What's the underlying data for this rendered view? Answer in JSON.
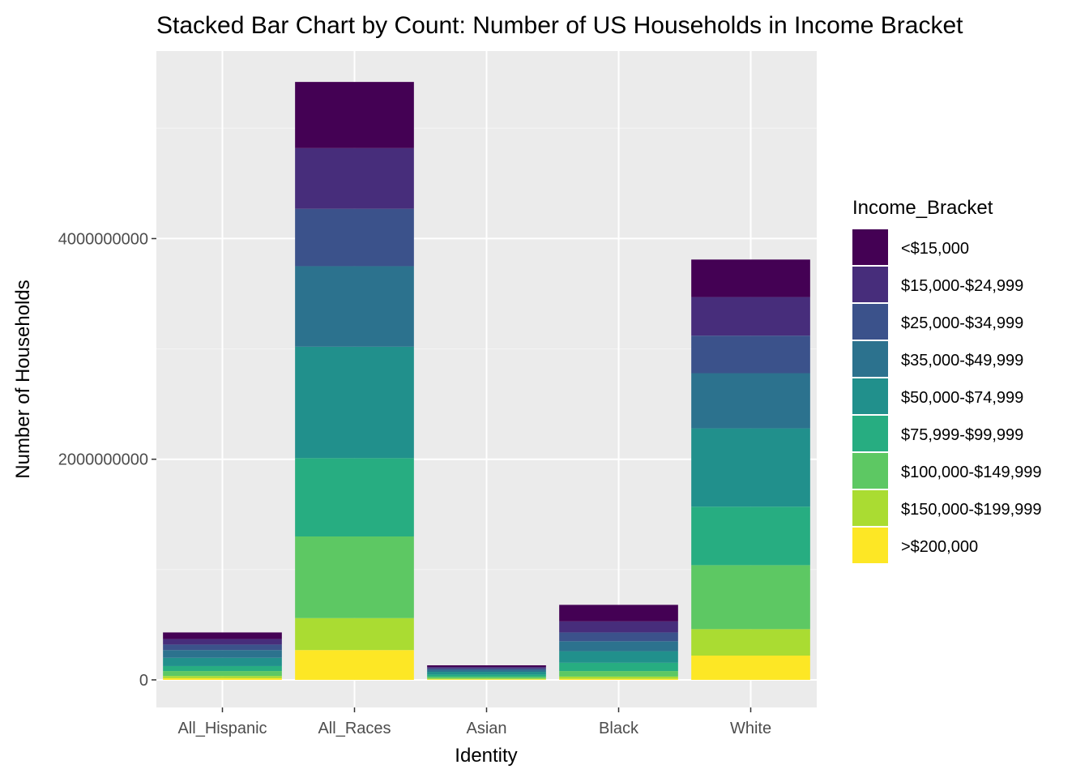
{
  "chart_data": {
    "type": "bar",
    "stacked": true,
    "title": "Stacked Bar Chart by Count: Number of US Households in Income Bracket",
    "xlabel": "Identity",
    "ylabel": "Number of Households",
    "categories": [
      "All_Hispanic",
      "All_Races",
      "Asian",
      "Black",
      "White"
    ],
    "y_ticks": [
      0,
      2000000000,
      4000000000
    ],
    "y_tick_labels": [
      "0",
      "2000000000",
      "4000000000"
    ],
    "ylim": [
      -250000000,
      5700000000
    ],
    "grid": true,
    "legend_title": "Income_Bracket",
    "legend_position": "right",
    "series": [
      {
        "name": "<$15,000",
        "color": "#440154",
        "values": [
          60000000,
          600000000,
          15000000,
          150000000,
          340000000
        ]
      },
      {
        "name": "$15,000-$24,999",
        "color": "#472D7B",
        "values": [
          50000000,
          550000000,
          13000000,
          100000000,
          350000000
        ]
      },
      {
        "name": "$25,000-$34,999",
        "color": "#3B528B",
        "values": [
          50000000,
          520000000,
          13000000,
          80000000,
          340000000
        ]
      },
      {
        "name": "$35,000-$49,999",
        "color": "#2C728E",
        "values": [
          70000000,
          730000000,
          18000000,
          90000000,
          500000000
        ]
      },
      {
        "name": "$50,000-$74,999",
        "color": "#21908C",
        "values": [
          75000000,
          1010000000,
          25000000,
          105000000,
          710000000
        ]
      },
      {
        "name": "$75,999-$99,999",
        "color": "#27AD81",
        "values": [
          45000000,
          710000000,
          20000000,
          75000000,
          530000000
        ]
      },
      {
        "name": "$100,000-$149,999",
        "color": "#5DC863",
        "values": [
          45000000,
          740000000,
          15000000,
          50000000,
          580000000
        ]
      },
      {
        "name": "$150,000-$199,999",
        "color": "#AADC32",
        "values": [
          20000000,
          290000000,
          8000000,
          20000000,
          240000000
        ]
      },
      {
        "name": ">$200,000",
        "color": "#FDE725",
        "values": [
          15000000,
          270000000,
          5000000,
          10000000,
          220000000
        ]
      }
    ]
  },
  "colors": {
    "panel_background": "#EBEBEB",
    "grid_major": "#FFFFFF",
    "grid_minor": "#F5F5F5",
    "tick_text": "#4D4D4D"
  }
}
